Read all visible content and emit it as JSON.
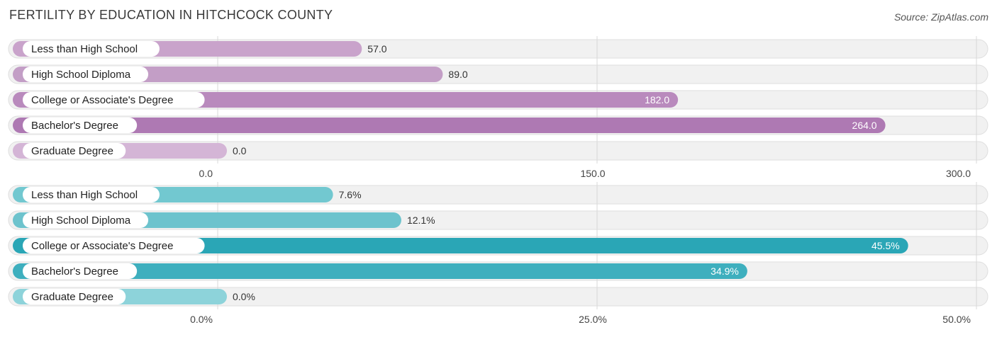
{
  "title": "FERTILITY BY EDUCATION IN HITCHCOCK COUNTY",
  "source": "Source: ZipAtlas.com",
  "chart_data": [
    {
      "type": "bar",
      "orientation": "horizontal",
      "categories": [
        "Less than High School",
        "High School Diploma",
        "College or Associate's Degree",
        "Bachelor's Degree",
        "Graduate Degree"
      ],
      "values": [
        57.0,
        89.0,
        182.0,
        264.0,
        0.0
      ],
      "value_labels": [
        "57.0",
        "89.0",
        "182.0",
        "264.0",
        "0.0"
      ],
      "xlim": [
        0,
        300
      ],
      "ticks": [
        "0.0",
        "150.0",
        "300.0"
      ],
      "grid": true,
      "colors": [
        "#c9a3cb",
        "#c39ec6",
        "#b98abd",
        "#ae79b3",
        "#d4b5d6"
      ]
    },
    {
      "type": "bar",
      "orientation": "horizontal",
      "categories": [
        "Less than High School",
        "High School Diploma",
        "College or Associate's Degree",
        "Bachelor's Degree",
        "Graduate Degree"
      ],
      "values": [
        7.6,
        12.1,
        45.5,
        34.9,
        0.0
      ],
      "value_labels": [
        "7.6%",
        "12.1%",
        "45.5%",
        "34.9%",
        "0.0%"
      ],
      "xlim": [
        0,
        50
      ],
      "ticks": [
        "0.0%",
        "25.0%",
        "50.0%"
      ],
      "grid": true,
      "colors": [
        "#72c8d0",
        "#6dc3cd",
        "#2aa6b6",
        "#3eafbe",
        "#8dd3da"
      ]
    }
  ]
}
